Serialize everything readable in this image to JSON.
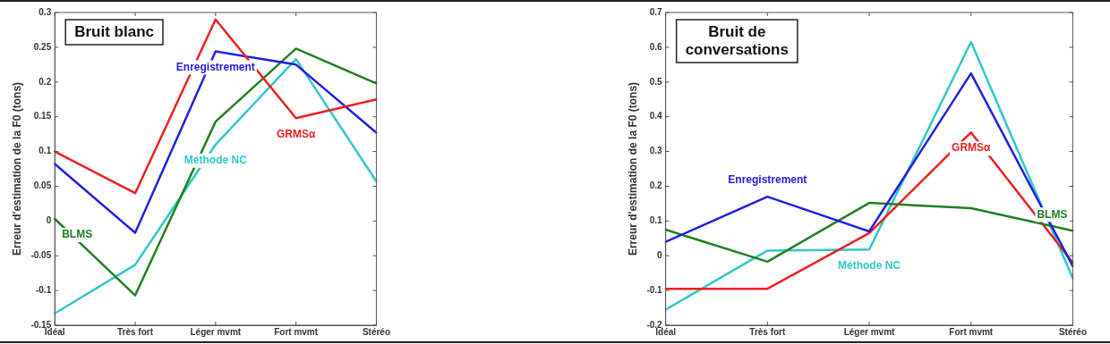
{
  "chart_data": [
    {
      "type": "line",
      "title": "Bruit blanc",
      "ylabel": "Erreur d'estimation de la F0 (tons)",
      "categories": [
        "Idéal",
        "Très fort",
        "Léger mvmt",
        "Fort mvmt",
        "Stéréo"
      ],
      "ylim": [
        -0.15,
        0.3
      ],
      "yticks": [
        -0.15,
        -0.1,
        -0.05,
        0,
        0.05,
        0.1,
        0.15,
        0.2,
        0.25,
        0.3
      ],
      "grid": false,
      "legend": false,
      "marker": "none",
      "line_style": "solid",
      "series": [
        {
          "name": "GRMSα",
          "color": "#ee2020",
          "values": [
            0.1,
            0.04,
            0.29,
            0.148,
            0.175
          ]
        },
        {
          "name": "Enregistrement",
          "color": "#2020e0",
          "values": [
            0.082,
            -0.017,
            0.244,
            0.225,
            0.127
          ]
        },
        {
          "name": "BLMS",
          "color": "#208020",
          "values": [
            0.003,
            -0.107,
            0.143,
            0.248,
            0.198
          ]
        },
        {
          "name": "Méthode NC",
          "color": "#30c8c8",
          "values": [
            -0.133,
            -0.063,
            0.11,
            0.233,
            0.057
          ]
        }
      ]
    },
    {
      "type": "line",
      "title": "Bruit de conversations",
      "ylabel": "Erreur d'estimation de la F0 (tons)",
      "categories": [
        "Idéal",
        "Très fort",
        "Léger mvmt",
        "Fort mvmt",
        "Stéréo"
      ],
      "ylim": [
        -0.2,
        0.7
      ],
      "yticks": [
        -0.2,
        -0.1,
        0,
        0.1,
        0.2,
        0.3,
        0.4,
        0.5,
        0.6,
        0.7
      ],
      "grid": false,
      "legend": false,
      "marker": "none",
      "line_style": "solid",
      "series": [
        {
          "name": "Enregistrement",
          "color": "#2020e0",
          "values": [
            0.04,
            0.17,
            0.07,
            0.525,
            -0.03
          ]
        },
        {
          "name": "BLMS",
          "color": "#208020",
          "values": [
            0.075,
            -0.017,
            0.152,
            0.137,
            0.072
          ]
        },
        {
          "name": "GRMSα",
          "color": "#ee2020",
          "values": [
            -0.095,
            -0.095,
            0.065,
            0.355,
            -0.02
          ]
        },
        {
          "name": "Méthode NC",
          "color": "#30c8c8",
          "values": [
            -0.155,
            0.015,
            0.018,
            0.615,
            -0.065
          ]
        }
      ]
    }
  ]
}
